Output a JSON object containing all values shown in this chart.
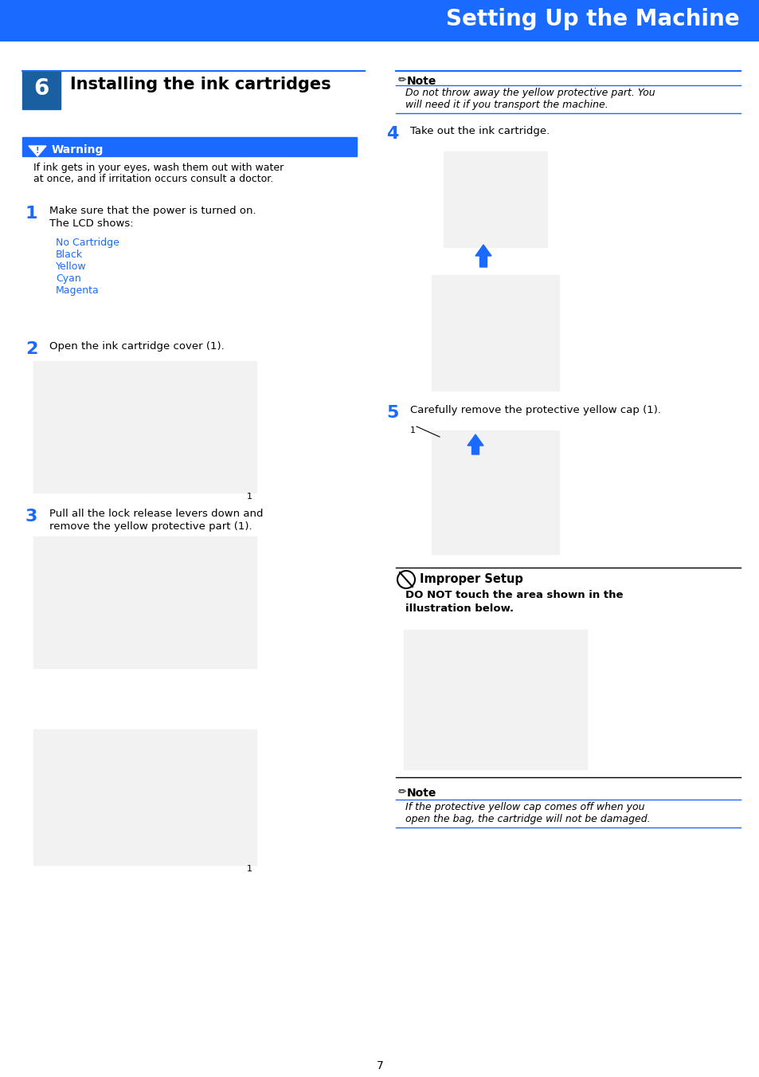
{
  "page_bg": "#ffffff",
  "header_bg": "#1a6aff",
  "header_text": "Setting Up the Machine",
  "header_text_color": "#ffffff",
  "step6_bg": "#1a5fa0",
  "step6_text": "Installing the ink cartridges",
  "warning_bg": "#1a6aff",
  "warning_text": "Warning",
  "warning_body1": "If ink gets in your eyes, wash them out with water",
  "warning_body2": "at once, and if irritation occurs consult a doctor.",
  "step1_num": "1",
  "step1_text1": "Make sure that the power is turned on.",
  "step1_text2": "The LCD shows:",
  "lcd_lines": [
    "No Cartridge",
    "Black",
    "Yellow",
    "Cyan",
    "Magenta"
  ],
  "step2_num": "2",
  "step2_text": "Open the ink cartridge cover (1).",
  "step3_num": "3",
  "step3_text1": "Pull all the lock release levers down and",
  "step3_text2": "remove the yellow protective part (1).",
  "note1_title": "Note",
  "note1_text1": "Do not throw away the yellow protective part. You",
  "note1_text2": "will need it if you transport the machine.",
  "step4_num": "4",
  "step4_text": "Take out the ink cartridge.",
  "step5_num": "5",
  "step5_text": "Carefully remove the protective yellow cap (1).",
  "improper_title": "Improper Setup",
  "improper_body1": "DO NOT touch the area shown in the",
  "improper_body2": "illustration below.",
  "note2_title": "Note",
  "note2_text1": "If the protective yellow cap comes off when you",
  "note2_text2": "open the bag, the cartridge will not be damaged.",
  "page_num": "7",
  "blue": "#1a6aff",
  "dark_blue": "#1a5fa0",
  "black": "#000000",
  "gray": "#888888",
  "light_gray": "#cccccc",
  "mid_gray": "#aaaaaa"
}
